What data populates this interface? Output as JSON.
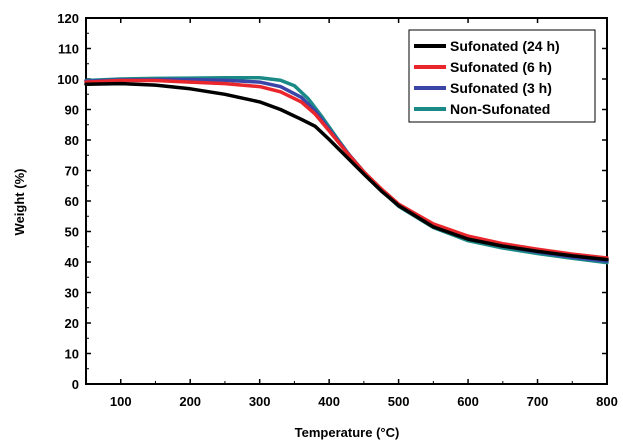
{
  "chart_data": {
    "type": "line",
    "xlabel": "Temperature (°C)",
    "ylabel": "Weight (%)",
    "xlim": [
      50,
      800
    ],
    "ylim": [
      0,
      120
    ],
    "xticks": [
      100,
      200,
      300,
      400,
      500,
      600,
      700,
      800
    ],
    "yticks": [
      0,
      10,
      20,
      30,
      40,
      50,
      60,
      70,
      80,
      90,
      100,
      110,
      120
    ],
    "legend_position": "top-right",
    "grid": false,
    "series": [
      {
        "name": "Sufonated (24 h)",
        "color": "#000000",
        "x": [
          50,
          100,
          150,
          200,
          250,
          300,
          330,
          360,
          380,
          400,
          425,
          450,
          475,
          500,
          550,
          600,
          650,
          700,
          750,
          800
        ],
        "y": [
          98.3,
          98.5,
          98.0,
          96.8,
          95.0,
          92.5,
          90.0,
          86.8,
          84.5,
          80.2,
          74.5,
          68.8,
          63.3,
          58.5,
          51.5,
          47.5,
          45.2,
          43.5,
          42.0,
          40.8
        ]
      },
      {
        "name": "Sufonated (6 h)",
        "color": "#e8262b",
        "x": [
          50,
          100,
          150,
          200,
          250,
          300,
          330,
          360,
          380,
          400,
          425,
          450,
          475,
          500,
          550,
          600,
          650,
          700,
          750,
          800
        ],
        "y": [
          99.0,
          99.5,
          99.5,
          99.0,
          98.5,
          97.5,
          95.8,
          92.5,
          88.5,
          83.0,
          76.0,
          69.5,
          64.0,
          59.0,
          52.5,
          48.5,
          46.0,
          44.2,
          42.6,
          41.3
        ]
      },
      {
        "name": "Sufonated (3 h)",
        "color": "#3b45a8",
        "x": [
          50,
          100,
          150,
          200,
          250,
          300,
          330,
          360,
          380,
          400,
          425,
          450,
          475,
          500,
          550,
          600,
          650,
          700,
          750,
          800
        ],
        "y": [
          99.3,
          99.7,
          99.8,
          99.8,
          99.6,
          99.0,
          97.5,
          94.0,
          89.5,
          83.5,
          76.2,
          69.5,
          63.5,
          58.5,
          51.8,
          47.6,
          45.2,
          43.3,
          41.6,
          40.3
        ]
      },
      {
        "name": "Non-Sufonated",
        "color": "#1b8a87",
        "x": [
          50,
          100,
          150,
          200,
          250,
          300,
          330,
          350,
          370,
          390,
          410,
          430,
          450,
          475,
          500,
          550,
          600,
          650,
          700,
          750,
          800
        ],
        "y": [
          99.5,
          100.0,
          100.2,
          100.3,
          100.4,
          100.4,
          99.6,
          97.8,
          93.5,
          87.5,
          81.0,
          74.8,
          69.5,
          63.5,
          58.3,
          51.3,
          47.0,
          44.6,
          42.8,
          41.2,
          39.8
        ]
      }
    ]
  }
}
